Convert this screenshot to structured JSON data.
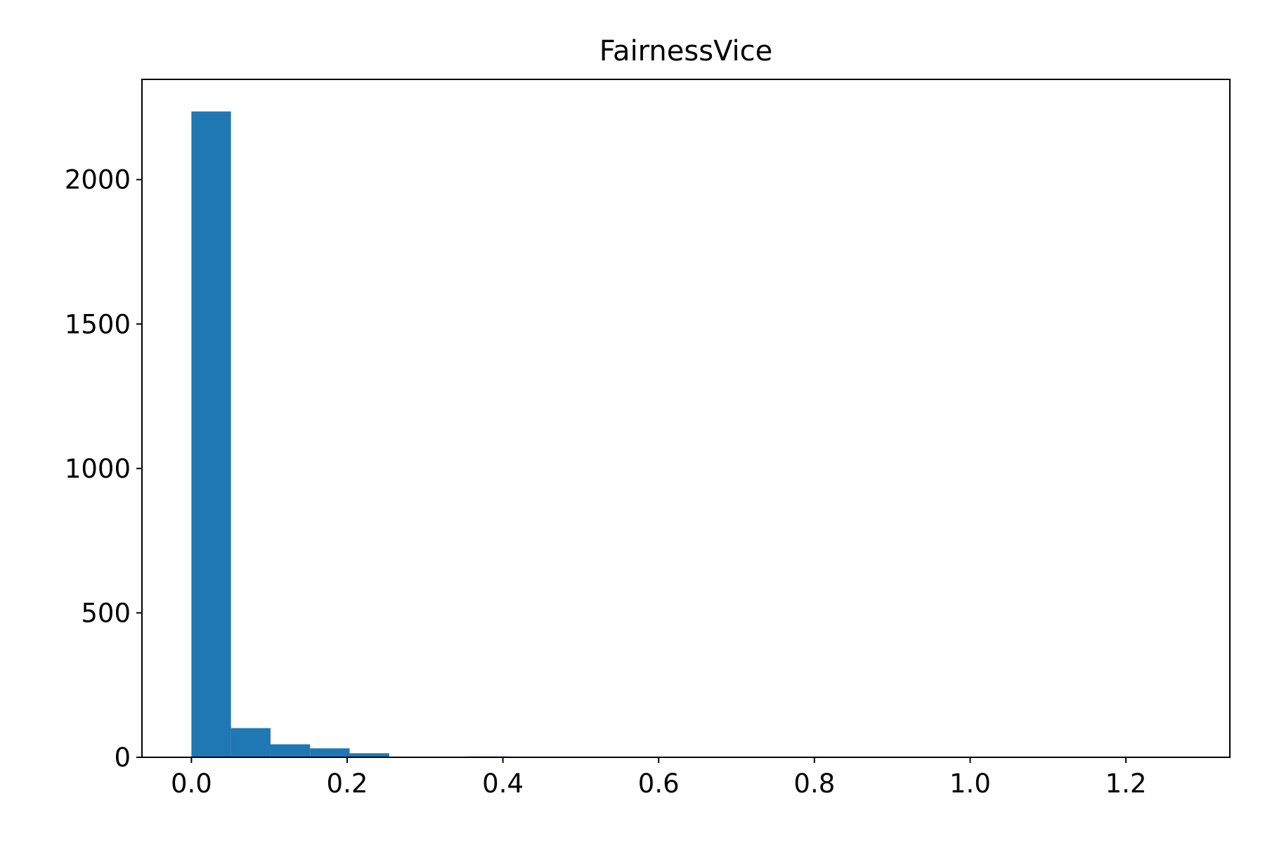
{
  "chart_data": {
    "type": "bar",
    "subtype": "histogram",
    "title": "FairnessVice",
    "xlabel": "",
    "ylabel": "",
    "bin_edges": [
      0.0,
      0.0508,
      0.1016,
      0.1524,
      0.2032,
      0.254,
      0.3048,
      0.3556,
      0.4064,
      0.4572,
      0.508,
      0.5588,
      0.6096,
      0.6604,
      0.7112,
      0.762,
      0.8128,
      0.8636,
      0.9144,
      0.9652,
      1.016,
      1.0668,
      1.1176,
      1.1684,
      1.2192,
      1.27
    ],
    "values": [
      2236,
      101,
      45,
      31,
      14,
      0,
      1,
      3,
      0,
      0,
      0,
      0,
      0,
      0,
      0,
      0,
      0,
      0,
      0,
      0,
      0,
      0,
      0,
      0,
      1
    ],
    "xlim": [
      -0.0635,
      1.3335
    ],
    "ylim": [
      0,
      2347
    ],
    "xticks": [
      0.0,
      0.2,
      0.4,
      0.6,
      0.8,
      1.0,
      1.2
    ],
    "xtick_labels": [
      "0.0",
      "0.2",
      "0.4",
      "0.6",
      "0.8",
      "1.0",
      "1.2"
    ],
    "yticks": [
      0,
      500,
      1000,
      1500,
      2000
    ],
    "ytick_labels": [
      "0",
      "500",
      "1000",
      "1500",
      "2000"
    ],
    "grid": false,
    "legend": "none",
    "bar_color": "#1f77b4"
  }
}
